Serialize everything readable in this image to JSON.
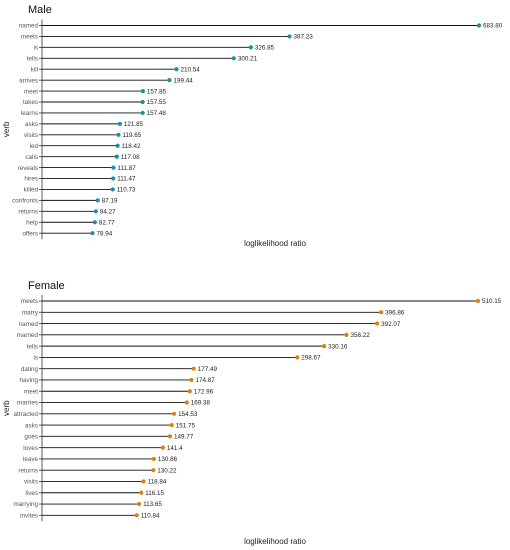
{
  "chart_data": [
    {
      "type": "lollipop",
      "title": "Male",
      "xlabel": "loglikelihood ratio",
      "ylabel": "verb",
      "point_color": "#1a8fa8",
      "categories": [
        "named",
        "meets",
        "is",
        "tells",
        "kill",
        "arrives",
        "meet",
        "takes",
        "learns",
        "asks",
        "visits",
        "led",
        "calls",
        "reveals",
        "hires",
        "killed",
        "confronts",
        "returns",
        "help",
        "offers"
      ],
      "values": [
        683.8,
        387.23,
        326.85,
        300.21,
        210.54,
        199.44,
        157.85,
        157.55,
        157.48,
        121.85,
        119.65,
        118.42,
        117.08,
        111.87,
        111.47,
        110.73,
        87.19,
        84.27,
        82.77,
        78.94
      ],
      "labels": [
        "683.80",
        "387.23",
        "326.85",
        "300.21",
        "210.54",
        "199.44",
        "157.85",
        "157.55",
        "157.48",
        "121.85",
        "119.65",
        "118.42",
        "117.08",
        "111.87",
        "111.47",
        "110.73",
        "87.19",
        "84.27",
        "82.77",
        "78.94"
      ],
      "xlim": [
        0,
        683.8
      ]
    },
    {
      "type": "lollipop",
      "title": "Female",
      "xlabel": "loglikelihood ratio",
      "ylabel": "verb",
      "point_color": "#d9820f",
      "categories": [
        "meets",
        "marry",
        "named",
        "married",
        "tells",
        "is",
        "dating",
        "having",
        "meet",
        "marries",
        "attracted",
        "asks",
        "goes",
        "loves",
        "leave",
        "returns",
        "visits",
        "lives",
        "marrying",
        "invites"
      ],
      "values": [
        510.15,
        396.86,
        392.07,
        356.22,
        330.16,
        298.67,
        177.49,
        174.87,
        172.96,
        169.38,
        154.53,
        151.75,
        149.77,
        141.4,
        130.86,
        130.22,
        118.84,
        116.15,
        113.65,
        110.84
      ],
      "labels": [
        "510.15",
        "396.86",
        "392.07",
        "356.22",
        "330.16",
        "298.67",
        "177.49",
        "174.87",
        "172.96",
        "169.38",
        "154.53",
        "151.75",
        "149.77",
        "141.4",
        "130.86",
        "130.22",
        "118.84",
        "116.15",
        "113.65",
        "110.84"
      ],
      "xlim": [
        0,
        510.15
      ]
    }
  ]
}
